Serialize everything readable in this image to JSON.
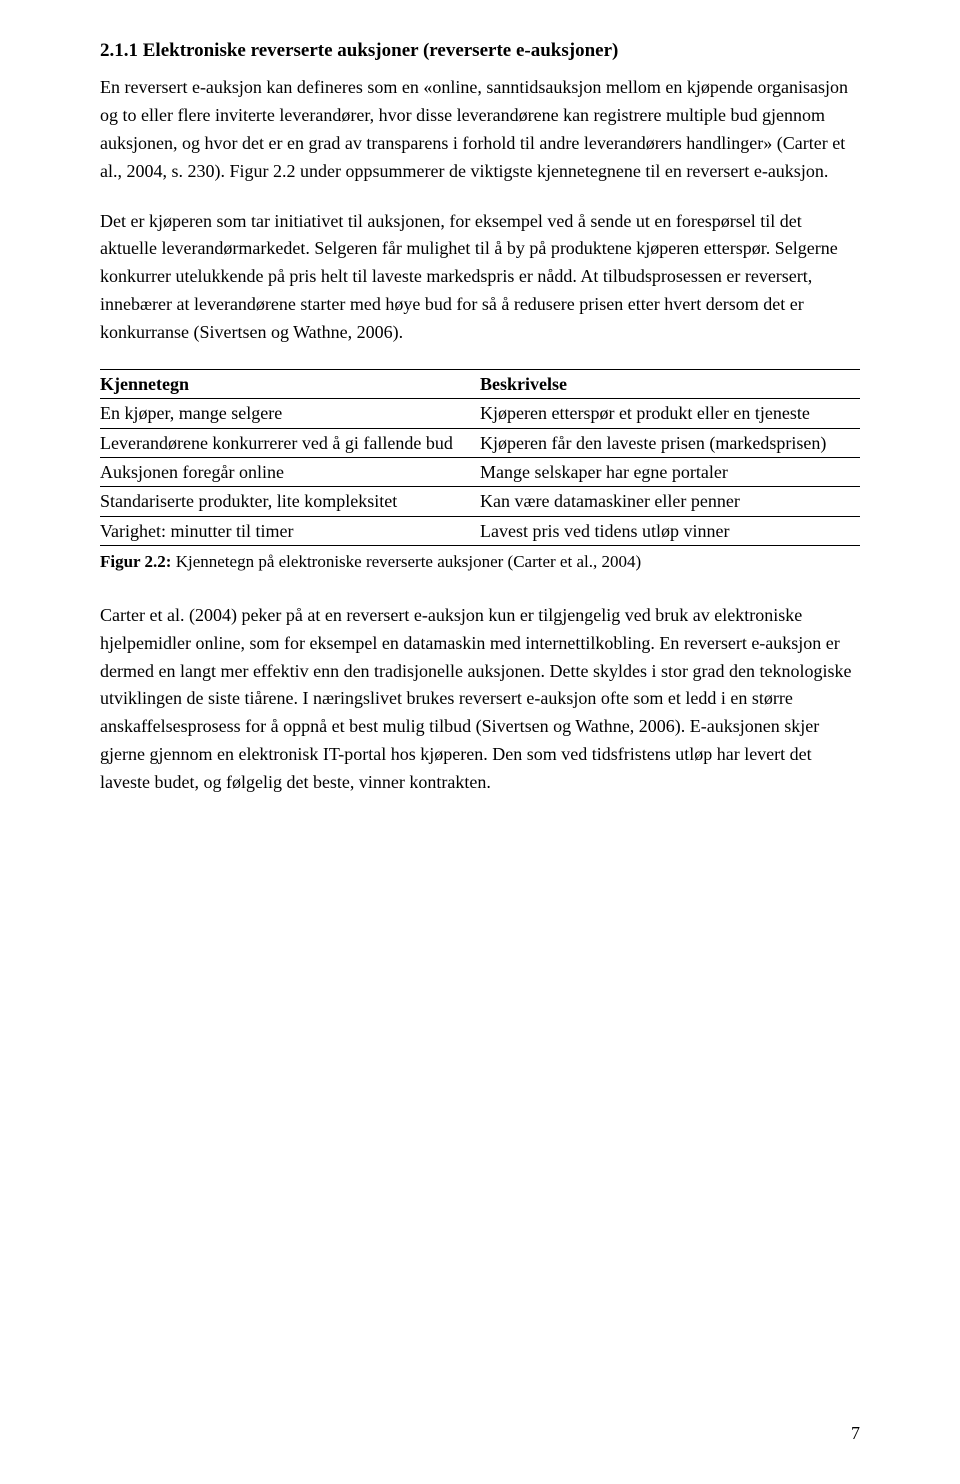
{
  "heading": "2.1.1 Elektroniske reverserte auksjoner (reverserte e-auksjoner)",
  "para1": "En reversert e-auksjon kan defineres som en «online, sanntidsauksjon mellom en kjøpende organisasjon og to eller flere inviterte leverandører, hvor disse leverandørene kan registrere multiple bud gjennom auksjonen, og hvor det er en grad av transparens i forhold til andre leverandørers handlinger» (Carter et al., 2004, s. 230). Figur 2.2 under oppsummerer de viktigste kjennetegnene til en reversert e-auksjon.",
  "para2": "Det er kjøperen som tar initiativet til auksjonen, for eksempel ved å sende ut en forespørsel til det aktuelle leverandørmarkedet. Selgeren får mulighet til å by på produktene kjøperen etterspør. Selgerne konkurrer utelukkende på pris helt til laveste markedspris er nådd. At tilbudsprosessen er reversert, innebærer at leverandørene starter med høye bud for så å redusere prisen etter hvert dersom det er konkurranse (Sivertsen og Wathne, 2006).",
  "table": {
    "header": {
      "col1": "Kjennetegn",
      "col2": "Beskrivelse"
    },
    "rows": [
      {
        "col1": "En kjøper, mange selgere",
        "col2": "Kjøperen etterspør et produkt eller en tjeneste"
      },
      {
        "col1": "Leverandørene konkurrerer ved å gi fallende bud",
        "col2": "Kjøperen får den laveste prisen (markedsprisen)"
      },
      {
        "col1": "Auksjonen foregår online",
        "col2": "Mange selskaper har egne portaler"
      },
      {
        "col1": "Standariserte produkter, lite kompleksitet",
        "col2": "Kan være datamaskiner eller penner"
      },
      {
        "col1": "Varighet: minutter til timer",
        "col2": "Lavest pris ved tidens utløp vinner"
      }
    ]
  },
  "figureCaption": {
    "label": "Figur 2.2:",
    "text": " Kjennetegn på elektroniske reverserte auksjoner (Carter et al., 2004)"
  },
  "para3": "Carter et al. (2004) peker på at en reversert e-auksjon kun er tilgjengelig ved bruk av elektroniske hjelpemidler online, som for eksempel en datamaskin med internettilkobling. En reversert e-auksjon er dermed en langt mer effektiv enn den tradisjonelle auksjonen. Dette skyldes i stor grad den teknologiske utviklingen de siste tiårene. I næringslivet brukes reversert e-auksjon ofte som et ledd i en større anskaffelsesprosess for å oppnå et best mulig tilbud (Sivertsen og Wathne, 2006). E-auksjonen skjer gjerne gjennom en elektronisk IT-portal hos kjøperen. Den som ved tidsfristens utløp har levert det laveste budet, og følgelig det beste, vinner kontrakten.",
  "pageNumber": "7"
}
